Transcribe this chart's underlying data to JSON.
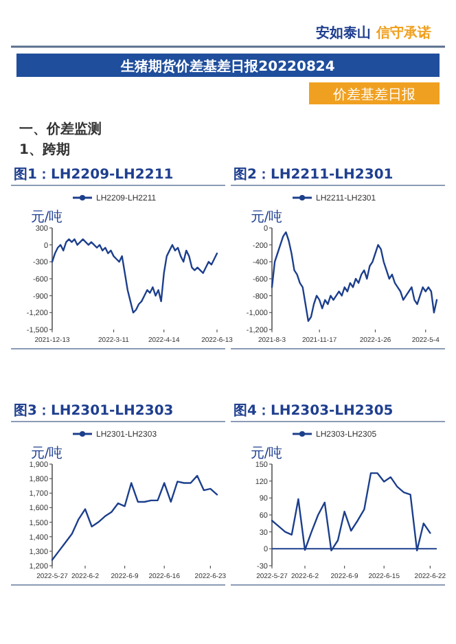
{
  "chart_data": [
    {
      "type": "other",
      "title": "生猪期货价差基差日报20220824",
      "subtitle": "价差基差日报",
      "annotations": [
        "安如泰山",
        "信守承诺",
        "一、价差监测",
        "1、跨期"
      ]
    },
    {
      "type": "line",
      "title": "图1：LH2209-LH2211",
      "ylabel": "元/吨",
      "legend": "top",
      "ylim": [
        -1500,
        300
      ],
      "yticks": [
        300,
        0,
        {
          "value": -300,
          "label": "-300"
        },
        {
          "value": -600,
          "label": "-600"
        },
        {
          "value": -900,
          "label": "-900"
        },
        {
          "value": -1200,
          "label": "-1,200"
        },
        {
          "value": -1500,
          "label": "-1,500"
        }
      ],
      "categories": [
        "2021-12-13",
        null,
        null,
        null,
        null,
        null,
        null,
        null,
        null,
        null,
        null,
        null,
        null,
        null,
        null,
        null,
        null,
        null,
        null,
        null,
        null,
        null,
        "2022-3-11",
        null,
        null,
        null,
        null,
        null,
        null,
        null,
        null,
        null,
        null,
        null,
        null,
        null,
        null,
        null,
        null,
        null,
        "2022-4-14",
        null,
        null,
        null,
        null,
        null,
        null,
        null,
        null,
        null,
        null,
        null,
        null,
        null,
        null,
        null,
        null,
        null,
        null,
        "2022-6-13"
      ],
      "series": [
        {
          "name": "LH2209-LH2211",
          "color": "#1c3f8c",
          "values": [
            -300,
            -150,
            -50,
            0,
            -100,
            50,
            100,
            50,
            100,
            0,
            50,
            100,
            50,
            0,
            50,
            0,
            -50,
            0,
            -100,
            -50,
            -150,
            -100,
            -200,
            -250,
            -300,
            -200,
            -500,
            -800,
            -1000,
            -1200,
            -1150,
            -1050,
            -1000,
            -900,
            -800,
            -850,
            -750,
            -900,
            -800,
            -1000,
            -500,
            -200,
            -100,
            0,
            -100,
            -50,
            -200,
            -300,
            -100,
            -200,
            -400,
            -450,
            -400,
            -450,
            -500,
            -400,
            -300,
            -350,
            -250,
            -150
          ]
        }
      ]
    },
    {
      "type": "line",
      "title": "图2：LH2211-LH2301",
      "ylabel": "元/吨",
      "legend": "top",
      "ylim": [
        -1200,
        0
      ],
      "yticks": [
        0,
        {
          "value": -200,
          "label": "-200"
        },
        {
          "value": -400,
          "label": "-400"
        },
        {
          "value": -600,
          "label": "-600"
        },
        {
          "value": -800,
          "label": "-800"
        },
        {
          "value": -1000,
          "label": "-1,000"
        },
        {
          "value": -1200,
          "label": "-1,200"
        }
      ],
      "categories": [
        "2021-8-3",
        null,
        null,
        null,
        null,
        null,
        null,
        null,
        null,
        null,
        null,
        null,
        null,
        null,
        null,
        null,
        null,
        "2021-11-17",
        null,
        null,
        null,
        null,
        null,
        null,
        null,
        null,
        null,
        null,
        null,
        null,
        null,
        null,
        null,
        null,
        null,
        null,
        null,
        "2022-1-26",
        null,
        null,
        null,
        null,
        null,
        null,
        null,
        null,
        null,
        null,
        null,
        null,
        null,
        null,
        null,
        null,
        null,
        "2022-5-4",
        null,
        null,
        null,
        null
      ],
      "series": [
        {
          "name": "LH2211-LH2301",
          "color": "#1c3f8c",
          "values": [
            -700,
            -400,
            -300,
            -200,
            -100,
            -50,
            -150,
            -300,
            -500,
            -550,
            -650,
            -700,
            -900,
            -1100,
            -1050,
            -900,
            -800,
            -850,
            -950,
            -850,
            -900,
            -800,
            -850,
            -800,
            -750,
            -800,
            -700,
            -750,
            -650,
            -700,
            -600,
            -650,
            -550,
            -500,
            -600,
            -450,
            -400,
            -300,
            -200,
            -250,
            -400,
            -500,
            -600,
            -550,
            -650,
            -700,
            -750,
            -850,
            -800,
            -750,
            -700,
            -850,
            -900,
            -800,
            -700,
            -750,
            -700,
            -750,
            -1000,
            -850
          ]
        }
      ]
    },
    {
      "type": "line",
      "title": "图3：LH2301-LH2303",
      "ylabel": "元/吨",
      "legend": "top",
      "ylim": [
        1200,
        1900
      ],
      "yticks": [
        {
          "value": 1900,
          "label": "1,900"
        },
        {
          "value": 1800,
          "label": "1,800"
        },
        {
          "value": 1700,
          "label": "1,700"
        },
        {
          "value": 1600,
          "label": "1,600"
        },
        {
          "value": 1500,
          "label": "1,500"
        },
        {
          "value": 1400,
          "label": "1,400"
        },
        {
          "value": 1300,
          "label": "1,300"
        },
        {
          "value": 1200,
          "label": "1,200"
        }
      ],
      "categories": [
        "2022-5-27",
        null,
        null,
        null,
        null,
        "2022-6-2",
        null,
        null,
        null,
        null,
        null,
        "2022-6-9",
        null,
        null,
        null,
        null,
        null,
        "2022-6-16",
        null,
        null,
        null,
        null,
        null,
        null,
        "2022-6-23",
        null
      ],
      "series": [
        {
          "name": "LH2301-LH2303",
          "color": "#1c3f8c",
          "values": [
            1240,
            1300,
            1360,
            1420,
            1520,
            1590,
            1470,
            1500,
            1540,
            1570,
            1630,
            1610,
            1770,
            1640,
            1640,
            1650,
            1650,
            1770,
            1640,
            1780,
            1770,
            1770,
            1820,
            1720,
            1730,
            1690
          ]
        }
      ]
    },
    {
      "type": "line",
      "title": "图4：LH2303-LH2305",
      "ylabel": "元/吨",
      "legend": "top",
      "ylim": [
        -30,
        150
      ],
      "yticks": [
        150,
        120,
        90,
        60,
        30,
        0,
        {
          "value": -30,
          "label": "-30"
        }
      ],
      "ref_lines": [
        {
          "axis": "y",
          "value": 0,
          "color": "#1c3f8c"
        }
      ],
      "categories": [
        "2022-5-27",
        null,
        null,
        null,
        null,
        "2022-6-2",
        null,
        null,
        null,
        null,
        null,
        "2022-6-9",
        null,
        null,
        null,
        null,
        null,
        "2022-6-15",
        null,
        null,
        null,
        null,
        null,
        null,
        "2022-6-22",
        null
      ],
      "series": [
        {
          "name": "LH2303-LH2305",
          "color": "#1c3f8c",
          "values": [
            50,
            40,
            30,
            25,
            88,
            -2,
            30,
            60,
            82,
            -3,
            15,
            66,
            32,
            50,
            70,
            134,
            134,
            119,
            127,
            110,
            100,
            96,
            -3,
            45,
            28,
            null
          ]
        }
      ]
    }
  ]
}
